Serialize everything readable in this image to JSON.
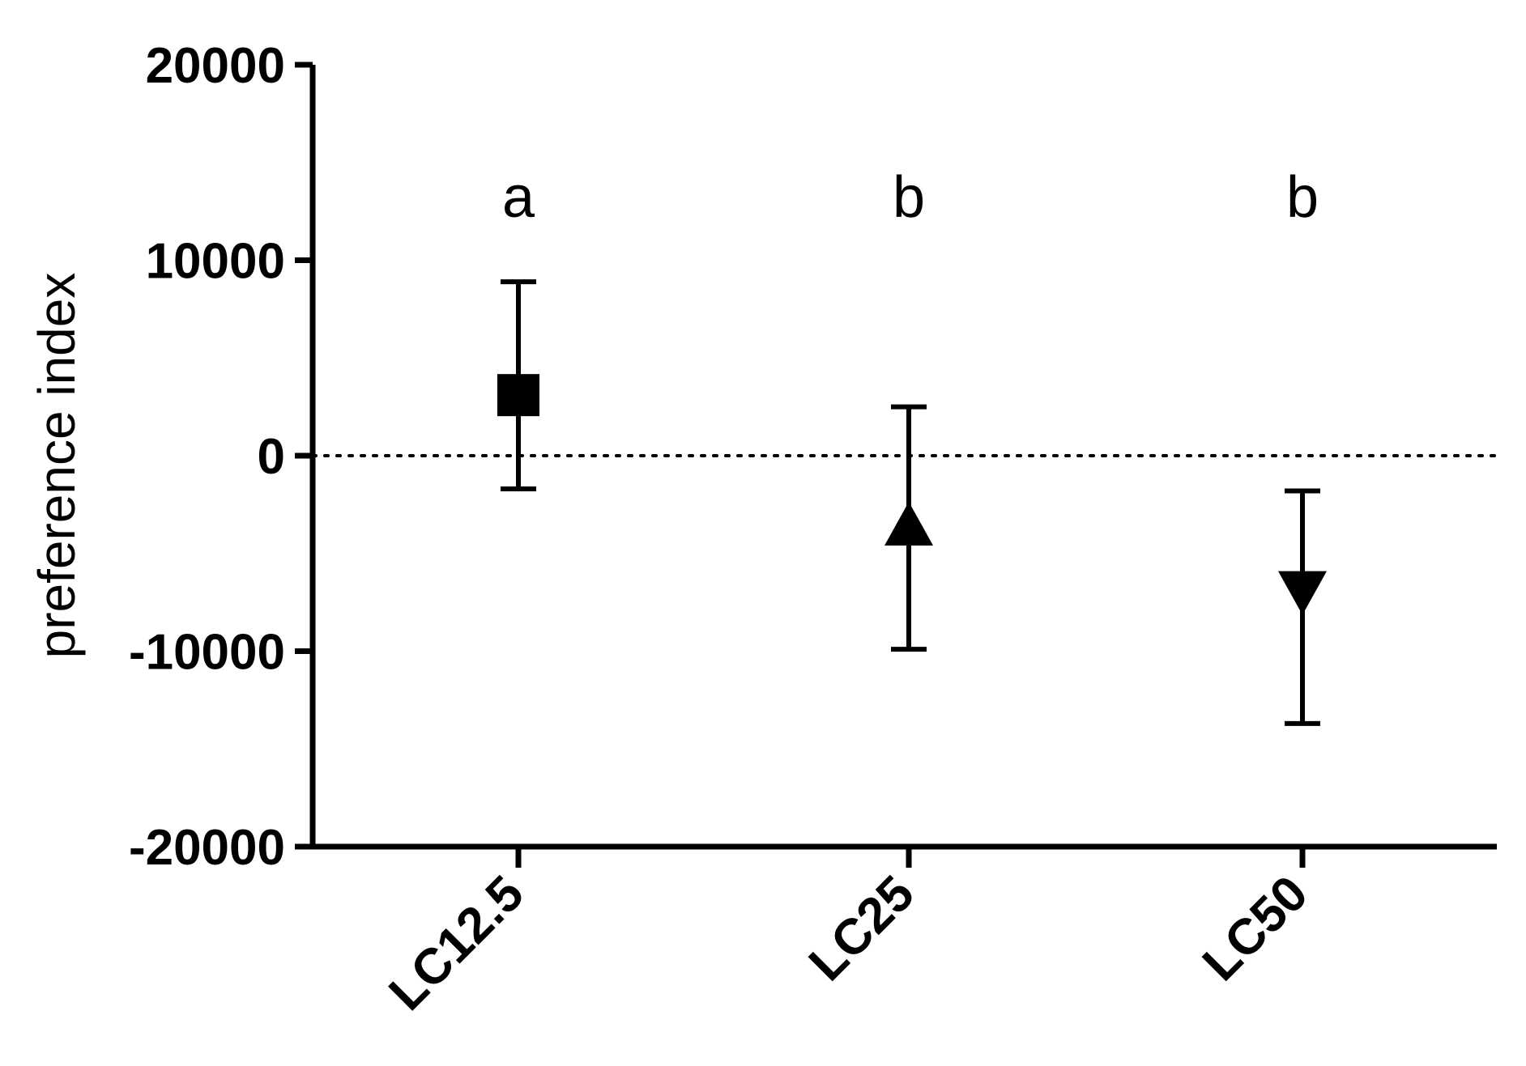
{
  "chart_data": {
    "type": "scatter",
    "title": "",
    "xlabel": "",
    "ylabel": "preference index",
    "ylim": [
      -20000,
      20000
    ],
    "yticks": [
      20000,
      10000,
      0,
      -10000,
      -20000
    ],
    "ytick_labels": [
      "20000",
      "10000",
      "0",
      "-10000",
      "-20000"
    ],
    "categories": [
      "LC12.5",
      "LC25",
      "LC50"
    ],
    "points": [
      {
        "category": "LC12.5",
        "mean": 3100,
        "lower": -1700,
        "upper": 8900,
        "marker": "square",
        "letter": "a"
      },
      {
        "category": "LC25",
        "mean": -3600,
        "lower": -9900,
        "upper": 2500,
        "marker": "triangle-up",
        "letter": "b"
      },
      {
        "category": "LC50",
        "mean": -6900,
        "lower": -13700,
        "upper": -1800,
        "marker": "triangle-down",
        "letter": "b"
      }
    ],
    "reference_line": {
      "y": 0,
      "style": "dotted"
    },
    "grid": false,
    "legend": "none",
    "colors": {
      "marker": "#000000",
      "axis": "#000000"
    }
  }
}
